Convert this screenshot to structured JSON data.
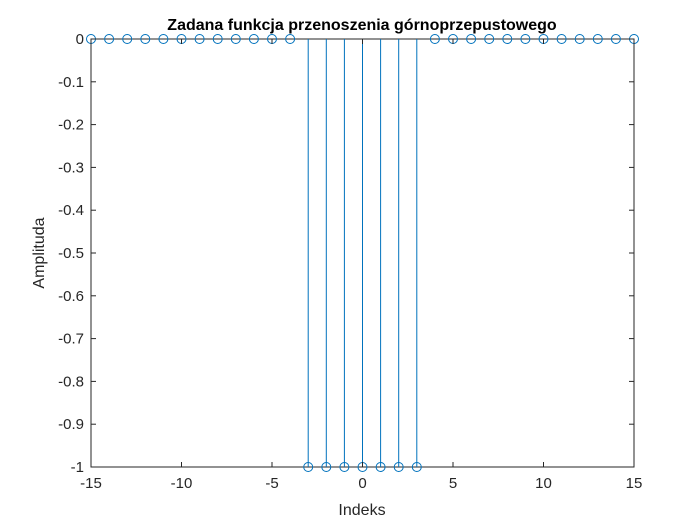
{
  "chart_data": {
    "type": "stem",
    "title": "Zadana funkcja przenoszenia górnoprzepustowego",
    "xlabel": "Indeks",
    "ylabel": "Amplituda",
    "xlim": [
      -15,
      15
    ],
    "ylim": [
      -1,
      0
    ],
    "grid": false,
    "x_ticks": [
      -15,
      -10,
      -5,
      0,
      5,
      10,
      15
    ],
    "y_ticks": [
      0,
      -0.1,
      -0.2,
      -0.3,
      -0.4,
      -0.5,
      -0.6,
      -0.7,
      -0.8,
      -0.9,
      -1
    ],
    "series": [
      {
        "x": [
          -15,
          -14,
          -13,
          -12,
          -11,
          -10,
          -9,
          -8,
          -7,
          -6,
          -5,
          -4,
          -3,
          -2,
          -1,
          0,
          1,
          2,
          3,
          4,
          5,
          6,
          7,
          8,
          9,
          10,
          11,
          12,
          13,
          14,
          15
        ],
        "y": [
          0,
          0,
          0,
          0,
          0,
          0,
          0,
          0,
          0,
          0,
          0,
          0,
          -1,
          -1,
          -1,
          -1,
          -1,
          -1,
          -1,
          0,
          0,
          0,
          0,
          0,
          0,
          0,
          0,
          0,
          0,
          0,
          0
        ]
      }
    ],
    "colors": {
      "stem": "#0072BD",
      "axes": "#262626"
    }
  }
}
